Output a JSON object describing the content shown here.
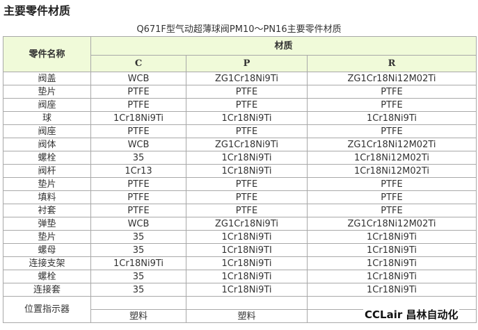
{
  "page_title": "主要零件材质",
  "table_caption": "Q671F型气动超薄球阀PM10～PN16主要零件材质",
  "table": {
    "header_part": "零件名称",
    "header_material": "材质",
    "columns": [
      "C",
      "P",
      "R"
    ],
    "rows": [
      {
        "part": "阀盖",
        "values": [
          "WCB",
          "ZG1Cr18Ni9Ti",
          "ZG1Cr18Ni12M02Ti"
        ]
      },
      {
        "part": "垫片",
        "values": [
          "PTFE",
          "PTFE",
          "PTFE"
        ]
      },
      {
        "part": "阀座",
        "values": [
          "PTFE",
          "PTFE",
          "PTFE"
        ]
      },
      {
        "part": "球",
        "values": [
          "1Cr18Ni9Ti",
          "1Cr18Ni9Ti",
          "1Cr18Ni9Ti"
        ]
      },
      {
        "part": "阀座",
        "values": [
          "PTFE",
          "PTFE",
          "PTFE"
        ]
      },
      {
        "part": "阀体",
        "values": [
          "WCB",
          "ZG1Cr18Ni9Ti",
          "ZG1Cr18Ni12M02Ti"
        ]
      },
      {
        "part": "螺栓",
        "values": [
          "35",
          "1Cr18Ni9Ti",
          "1Cr18Ni12M02Ti"
        ]
      },
      {
        "part": "阀杆",
        "values": [
          "1Cr13",
          "1Cr18Ni9Ti",
          "1Cr18Ni12M02Ti"
        ]
      },
      {
        "part": "垫片",
        "values": [
          "PTFE",
          "PTFE",
          "PTFE"
        ]
      },
      {
        "part": "填料",
        "values": [
          "PTFE",
          "PTFE",
          "PTFE"
        ]
      },
      {
        "part": "衬套",
        "values": [
          "PTFE",
          "PTFE",
          "PTFE"
        ]
      },
      {
        "part": "弹垫",
        "values": [
          "WCB",
          "ZG1Cr18Ni9Ti",
          "ZG1Cr18Ni12M02Ti"
        ]
      },
      {
        "part": "垫片",
        "values": [
          "35",
          "1Cr18Ni9Ti",
          "1Cr18Ni9Ti"
        ]
      },
      {
        "part": "螺母",
        "values": [
          "35",
          "1Cr18Ni9TI",
          "1Cr18Ni9Ti"
        ]
      },
      {
        "part": "连接支架",
        "values": [
          "1Cr18Ni9Ti",
          "1Cr18Ni9Ti",
          "1Cr18Ni9Ti"
        ]
      },
      {
        "part": "螺栓",
        "values": [
          "35",
          "1Cr18Ni9Ti",
          "1Cr18Ni9Ti"
        ]
      },
      {
        "part": "连接套",
        "values": [
          "35",
          "1Cr18Ni9Ti",
          "1Cr18Ni9Ti"
        ]
      }
    ],
    "last_row": {
      "part": "位置指示器",
      "values": [
        "塑料",
        "塑料",
        ""
      ]
    }
  },
  "watermark": "CCLair 昌林自动化",
  "colors": {
    "header_bg": "#f0fad9",
    "border": "#a8a8a8"
  }
}
